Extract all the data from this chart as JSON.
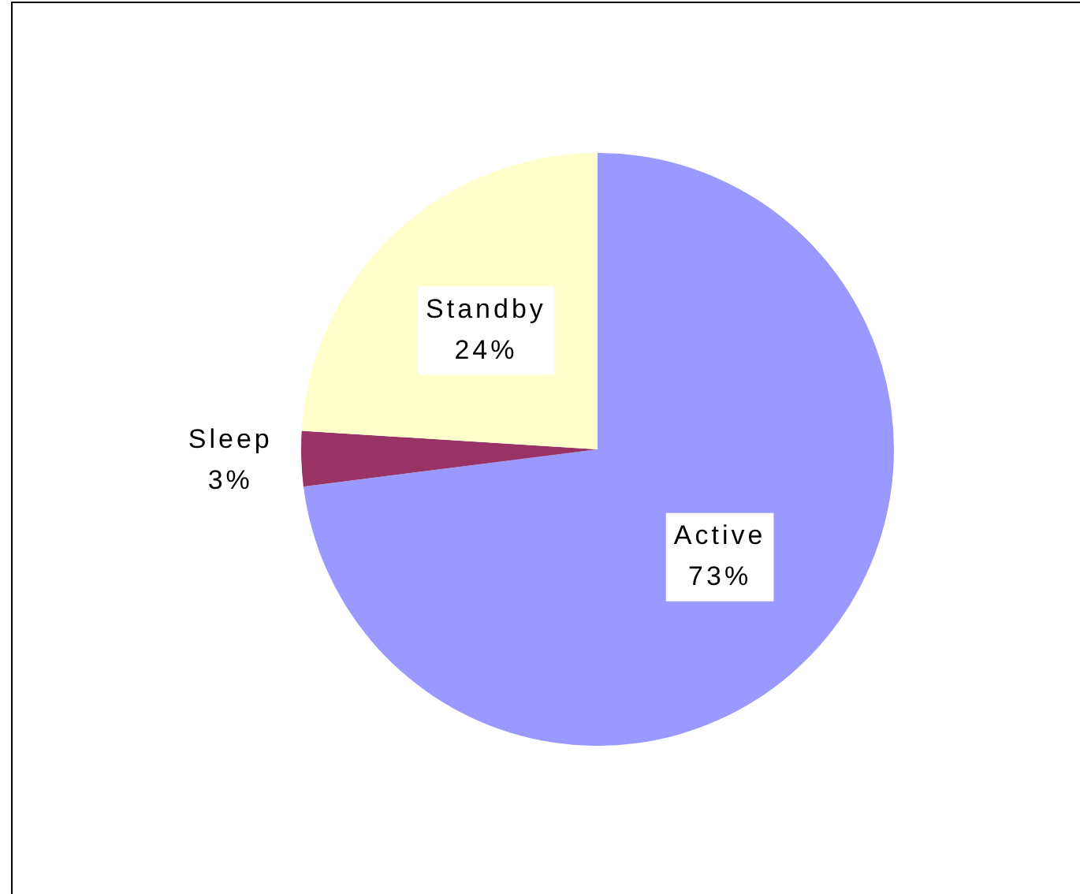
{
  "chart_data": {
    "type": "pie",
    "categories": [
      "Active",
      "Sleep",
      "Standby"
    ],
    "values": [
      73,
      3,
      24
    ],
    "colors": [
      "#9999ff",
      "#993366",
      "#ffffcc"
    ],
    "value_labels": [
      "73%",
      "3%",
      "24%"
    ],
    "legend": false
  }
}
